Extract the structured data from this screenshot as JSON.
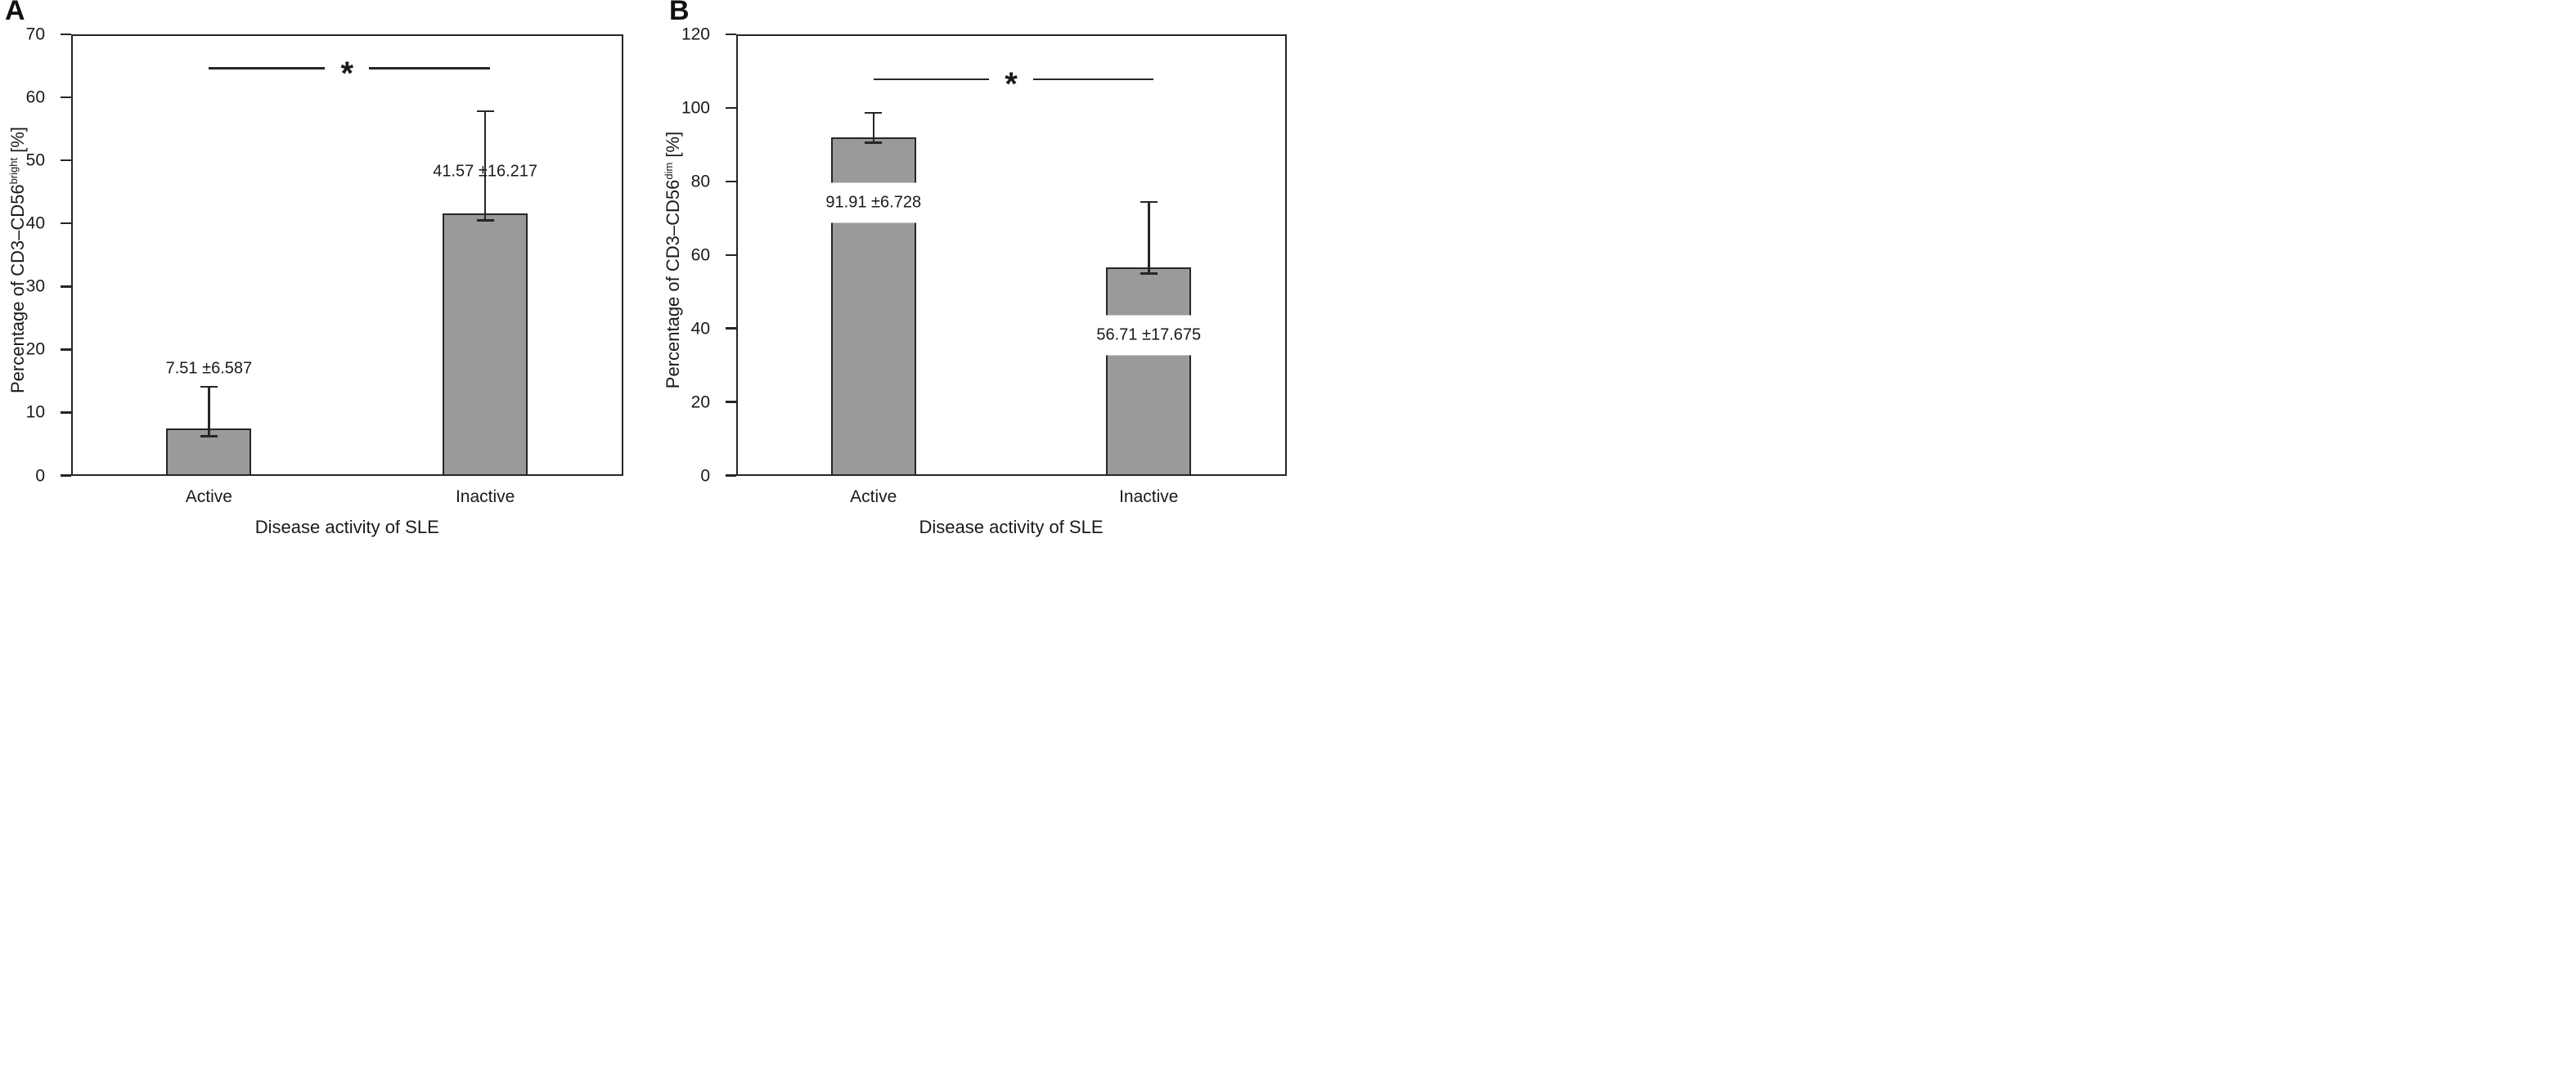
{
  "figure": {
    "background": "#ffffff",
    "colors": {
      "bar_fill": "#9a9a9a",
      "bar_border": "#262626",
      "axis": "#262626",
      "text": "#1a1a1a"
    }
  },
  "chart_data": [
    {
      "type": "bar",
      "panel_label": "A",
      "title": "",
      "xlabel": "Disease activity of SLE",
      "ylabel": "Percentage of CD3–CD56bright [%]",
      "ylabel_parts": {
        "prefix": "Percentage of CD3–CD56",
        "sup": "bright",
        "suffix": " [%]"
      },
      "categories": [
        "Active",
        "Inactive"
      ],
      "values": [
        7.51,
        41.57
      ],
      "sd": [
        6.587,
        16.217
      ],
      "error_bar_lower_extent": [
        1.26,
        1.07
      ],
      "value_labels": [
        "7.51 ±6.587",
        "41.57 ±16.217"
      ],
      "value_label_y": [
        16.9,
        48.2
      ],
      "ylim": [
        0,
        70
      ],
      "yticks": [
        0,
        10,
        20,
        30,
        40,
        50,
        60,
        70
      ],
      "grid": false,
      "legend": null,
      "significance": {
        "symbol": "*",
        "y": 64.6,
        "between": [
          "Active",
          "Inactive"
        ]
      }
    },
    {
      "type": "bar",
      "panel_label": "B",
      "title": "",
      "xlabel": "Disease activity of SLE",
      "ylabel": "Percentage of CD3–CD56dim [%]",
      "ylabel_parts": {
        "prefix": "Percentage of CD3–CD56",
        "sup": "dim",
        "suffix": " [%]"
      },
      "categories": [
        "Active",
        "Inactive"
      ],
      "values": [
        91.91,
        56.71
      ],
      "sd": [
        6.728,
        17.675
      ],
      "error_bar_lower_extent": [
        1.4,
        1.8
      ],
      "value_labels": [
        "91.91 ±6.728",
        "56.71 ±17.675"
      ],
      "value_label_y": [
        74.1,
        38.2
      ],
      "ylim": [
        0,
        120
      ],
      "yticks": [
        0,
        20,
        40,
        60,
        80,
        100,
        120
      ],
      "grid": false,
      "legend": null,
      "significance": {
        "symbol": "*",
        "y": 107.8,
        "between": [
          "Active",
          "Inactive"
        ]
      }
    }
  ]
}
